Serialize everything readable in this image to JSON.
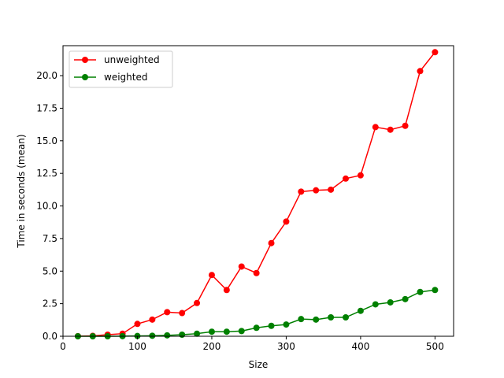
{
  "chart_data": {
    "type": "line",
    "xlabel": "Size",
    "ylabel": "Time in seconds (mean)",
    "xlim": [
      0,
      525
    ],
    "ylim": [
      0,
      22.3
    ],
    "x_ticks": [
      0,
      100,
      200,
      300,
      400,
      500
    ],
    "y_ticks": [
      0.0,
      2.5,
      5.0,
      7.5,
      10.0,
      12.5,
      15.0,
      17.5,
      20.0
    ],
    "x_tick_labels": [
      "0",
      "100",
      "200",
      "300",
      "400",
      "500"
    ],
    "y_tick_labels": [
      "0.0",
      "2.5",
      "5.0",
      "7.5",
      "10.0",
      "12.5",
      "15.0",
      "17.5",
      "20.0"
    ],
    "grid": false,
    "legend_position": "top-left",
    "x": [
      20,
      40,
      60,
      80,
      100,
      120,
      140,
      160,
      180,
      200,
      220,
      240,
      260,
      280,
      300,
      320,
      340,
      360,
      380,
      400,
      420,
      440,
      460,
      480,
      500
    ],
    "series": [
      {
        "name": "unweighted",
        "color": "#ff0000",
        "values": [
          0.01,
          0.03,
          0.12,
          0.2,
          0.95,
          1.28,
          1.85,
          1.78,
          2.55,
          4.7,
          3.55,
          5.35,
          4.85,
          7.15,
          8.8,
          11.1,
          11.2,
          11.25,
          12.1,
          12.35,
          16.05,
          15.85,
          16.15,
          20.35,
          21.8
        ]
      },
      {
        "name": "weighted",
        "color": "#008000",
        "values": [
          0.0,
          0.0,
          0.0,
          0.01,
          0.02,
          0.04,
          0.07,
          0.12,
          0.2,
          0.35,
          0.35,
          0.4,
          0.65,
          0.8,
          0.9,
          1.32,
          1.28,
          1.45,
          1.45,
          1.95,
          2.45,
          2.6,
          2.85,
          3.4,
          3.55
        ]
      }
    ]
  }
}
